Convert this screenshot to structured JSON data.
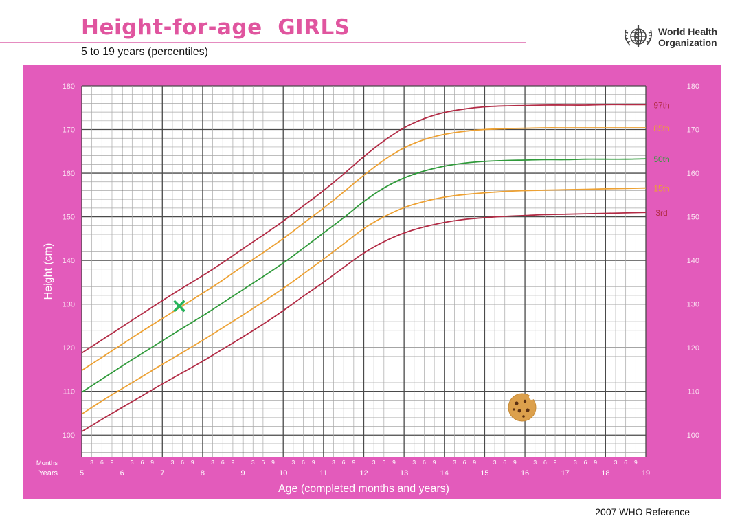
{
  "header": {
    "title": "Height-for-age  GIRLS",
    "subtitle": "5 to 19 years (percentiles)"
  },
  "who": {
    "line1": "World Health",
    "line2": "Organization",
    "logo_icon": "who-emblem-icon"
  },
  "footer": {
    "reference": "2007 WHO Reference"
  },
  "colors": {
    "frame": "#e35bbb",
    "grid_minor": "#a8a8a8",
    "grid_major": "#4a4a4a",
    "p97": "#b22b45",
    "p85": "#eda133",
    "p50": "#2f9a3a",
    "p15": "#eda133",
    "p3": "#b22b45",
    "marker": "#26b45a"
  },
  "chart_data": {
    "type": "line",
    "xlabel": "Age (completed months and years)",
    "ylabel": "Height (cm)",
    "xlim": [
      5,
      19
    ],
    "ylim": [
      95,
      180
    ],
    "y_ticks": [
      100,
      110,
      120,
      130,
      140,
      150,
      160,
      170,
      180
    ],
    "year_ticks": [
      5,
      6,
      7,
      8,
      9,
      10,
      11,
      12,
      13,
      14,
      15,
      16,
      17,
      18,
      19
    ],
    "month_ticks": [
      "3",
      "6",
      "9"
    ],
    "month_row_label": "Months",
    "year_row_label": "Years",
    "grid": true,
    "x": [
      5,
      5.5,
      6,
      6.5,
      7,
      7.5,
      8,
      8.5,
      9,
      9.5,
      10,
      10.5,
      11,
      11.5,
      12,
      12.5,
      13,
      13.5,
      14,
      14.5,
      15,
      15.5,
      16,
      16.5,
      17,
      17.5,
      18,
      18.5,
      19
    ],
    "series": [
      {
        "name": "97th",
        "color": "#b22b45",
        "values": [
          118.8,
          121.8,
          124.8,
          127.8,
          130.8,
          133.7,
          136.5,
          139.5,
          142.7,
          145.8,
          149.0,
          152.5,
          156.0,
          159.8,
          163.8,
          167.4,
          170.4,
          172.5,
          173.9,
          174.7,
          175.2,
          175.4,
          175.5,
          175.6,
          175.6,
          175.6,
          175.7,
          175.7,
          175.7
        ]
      },
      {
        "name": "85th",
        "color": "#eda133",
        "values": [
          114.8,
          117.8,
          120.8,
          123.8,
          126.7,
          129.6,
          132.5,
          135.5,
          138.7,
          141.8,
          145.0,
          148.5,
          152.0,
          155.7,
          159.5,
          163.0,
          165.8,
          167.7,
          168.9,
          169.6,
          170.0,
          170.2,
          170.3,
          170.4,
          170.4,
          170.4,
          170.4,
          170.4,
          170.4
        ]
      },
      {
        "name": "50th",
        "color": "#2f9a3a",
        "values": [
          109.8,
          112.8,
          115.8,
          118.7,
          121.6,
          124.5,
          127.3,
          130.3,
          133.3,
          136.3,
          139.4,
          142.8,
          146.3,
          149.8,
          153.5,
          156.6,
          158.9,
          160.5,
          161.6,
          162.3,
          162.7,
          162.9,
          163.0,
          163.1,
          163.1,
          163.2,
          163.2,
          163.2,
          163.3
        ]
      },
      {
        "name": "15th",
        "color": "#eda133",
        "values": [
          104.8,
          107.8,
          110.6,
          113.4,
          116.2,
          118.9,
          121.7,
          124.6,
          127.5,
          130.5,
          133.6,
          136.9,
          140.3,
          143.8,
          147.3,
          150.0,
          152.1,
          153.5,
          154.5,
          155.1,
          155.5,
          155.8,
          156.0,
          156.1,
          156.2,
          156.3,
          156.4,
          156.5,
          156.6
        ]
      },
      {
        "name": "3rd",
        "color": "#b22b45",
        "values": [
          100.8,
          103.6,
          106.3,
          109.0,
          111.7,
          114.3,
          116.9,
          119.7,
          122.5,
          125.4,
          128.5,
          131.8,
          135.0,
          138.4,
          141.7,
          144.3,
          146.3,
          147.7,
          148.7,
          149.4,
          149.8,
          150.1,
          150.3,
          150.5,
          150.6,
          150.7,
          150.8,
          150.9,
          151.0
        ]
      }
    ],
    "marker": {
      "x": 7.42,
      "y": 129.5,
      "symbol": "×"
    }
  }
}
